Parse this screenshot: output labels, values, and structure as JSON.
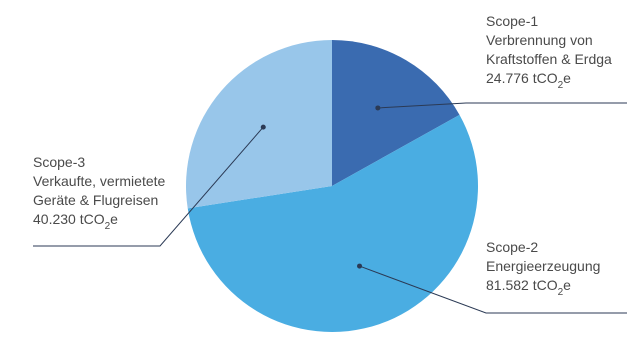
{
  "chart_data": {
    "type": "pie",
    "unit": "tCO₂e",
    "slices": [
      {
        "name": "Scope-1",
        "description": "Verbrennung von Kraftstoffen & Erdga",
        "value": 24776,
        "value_text": "24.776",
        "color": "#3a6bb0"
      },
      {
        "name": "Scope-2",
        "description": "Energieerzeugung",
        "value": 81582,
        "value_text": "81.582",
        "color": "#4aade2"
      },
      {
        "name": "Scope-3",
        "description": "Verkaufte, vermietete Geräte & Flugreisen",
        "value": 40230,
        "value_text": "40.230",
        "color": "#98c6ea"
      }
    ]
  },
  "labels": {
    "scope1": {
      "line1": "Scope-1",
      "line2": "Verbrennung von",
      "line3": "Kraftstoffen & Erdga",
      "value": "24.776 tCO",
      "sub": "2",
      "suffix": "e"
    },
    "scope2": {
      "line1": "Scope-2",
      "line2": "Energieerzeugung",
      "value": "81.582 tCO",
      "sub": "2",
      "suffix": "e"
    },
    "scope3": {
      "line1": "Scope-3",
      "line2": "Verkaufte, vermietete",
      "line3": "Geräte & Flugreisen",
      "value": "40.230 tCO",
      "sub": "2",
      "suffix": "e"
    }
  },
  "colors": {
    "leader_line": "#2b3a55",
    "text": "#4a4a4a"
  }
}
